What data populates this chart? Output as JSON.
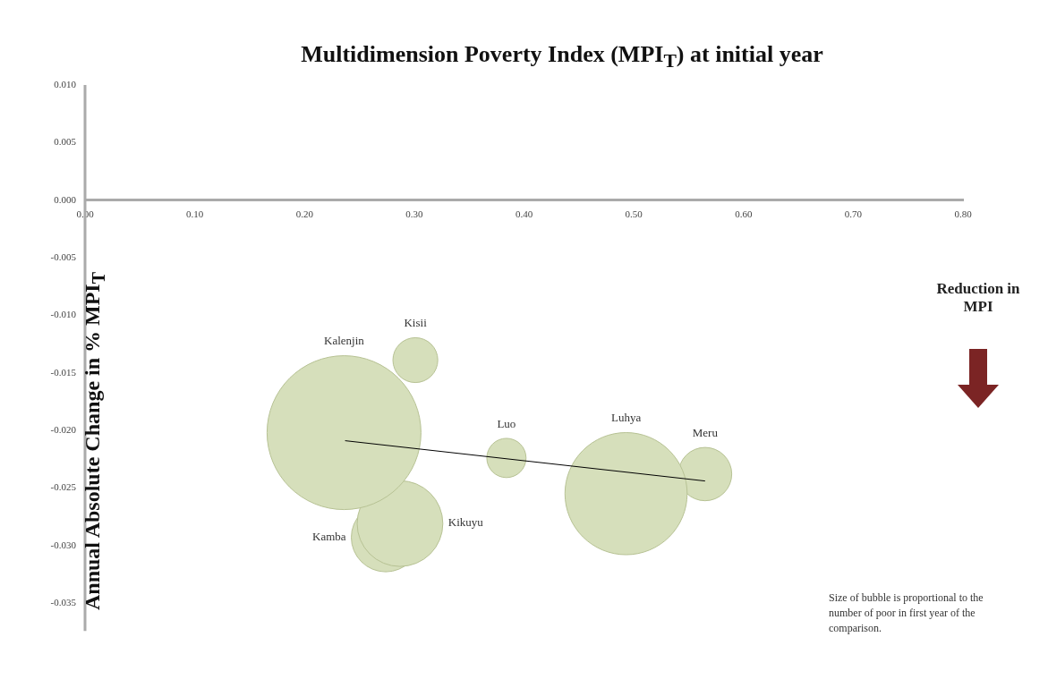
{
  "chart_data": {
    "type": "bubble",
    "title": "Multidimension Poverty Index (MPI$_{T}$) at initial year",
    "ylabel": "Annual Absolute Change in % MPI$_{T}$",
    "xlim": [
      0,
      0.8
    ],
    "xticks": [
      {
        "value": 0,
        "label": "0.00"
      },
      {
        "value": 0.1,
        "label": "0.10"
      },
      {
        "value": 0.2,
        "label": "0.20"
      },
      {
        "value": 0.3,
        "label": "0.30"
      },
      {
        "value": 0.4,
        "label": "0.40"
      },
      {
        "value": 0.5,
        "label": "0.50"
      },
      {
        "value": 0.6,
        "label": "0.60"
      },
      {
        "value": 0.7,
        "label": "0.70"
      },
      {
        "value": 0.8,
        "label": "0.80"
      }
    ],
    "ylim": [
      -0.035,
      0.01
    ],
    "yticks": [
      {
        "value": 0.01,
        "label": "0.010"
      },
      {
        "value": 0.005,
        "label": "0.005"
      },
      {
        "value": 0,
        "label": "0.000"
      },
      {
        "value": -0.005,
        "label": "-0.005"
      },
      {
        "value": -0.01,
        "label": "-0.010"
      },
      {
        "value": -0.015,
        "label": "-0.015"
      },
      {
        "value": -0.02,
        "label": "-0.020"
      },
      {
        "value": -0.025,
        "label": "-0.025"
      },
      {
        "value": -0.03,
        "label": "-0.030"
      },
      {
        "value": -0.035,
        "label": "-0.035"
      }
    ],
    "series": [
      {
        "name": "Kalenjin",
        "color": "#d6dfbb",
        "x": [
          0.236
        ],
        "values": [
          -0.0202
        ],
        "sizes": [
          1
        ]
      },
      {
        "name": "Kisii",
        "color": "#d6dfbb",
        "x": [
          0.301
        ],
        "values": [
          -0.0139
        ],
        "sizes": [
          0.085
        ]
      },
      {
        "name": "Luo",
        "color": "#d6dfbb",
        "x": [
          0.384
        ],
        "values": [
          -0.0224
        ],
        "sizes": [
          0.065
        ]
      },
      {
        "name": "Luhya",
        "color": "#d6dfbb",
        "x": [
          0.493
        ],
        "values": [
          -0.0255
        ],
        "sizes": [
          0.63
        ]
      },
      {
        "name": "Meru",
        "color": "#d6dfbb",
        "x": [
          0.565
        ],
        "values": [
          -0.0238
        ],
        "sizes": [
          0.12
        ]
      },
      {
        "name": "Kikuyu",
        "color": "#d6dfbb",
        "x": [
          0.287
        ],
        "values": [
          -0.0281
        ],
        "sizes": [
          0.31
        ]
      },
      {
        "name": "Kamba",
        "color": "#d6dfbb",
        "x": [
          0.274
        ],
        "values": [
          -0.0293
        ],
        "sizes": [
          0.2
        ]
      },
      {
        "type": "line",
        "color": "#000000",
        "x": [
          0.237,
          0.565
        ],
        "values": [
          -0.0209,
          -0.0244
        ]
      }
    ],
    "annotations": [
      "Reduction in MPI",
      "Size of bubble is proportional to the number of poor in first year of the comparison."
    ]
  }
}
